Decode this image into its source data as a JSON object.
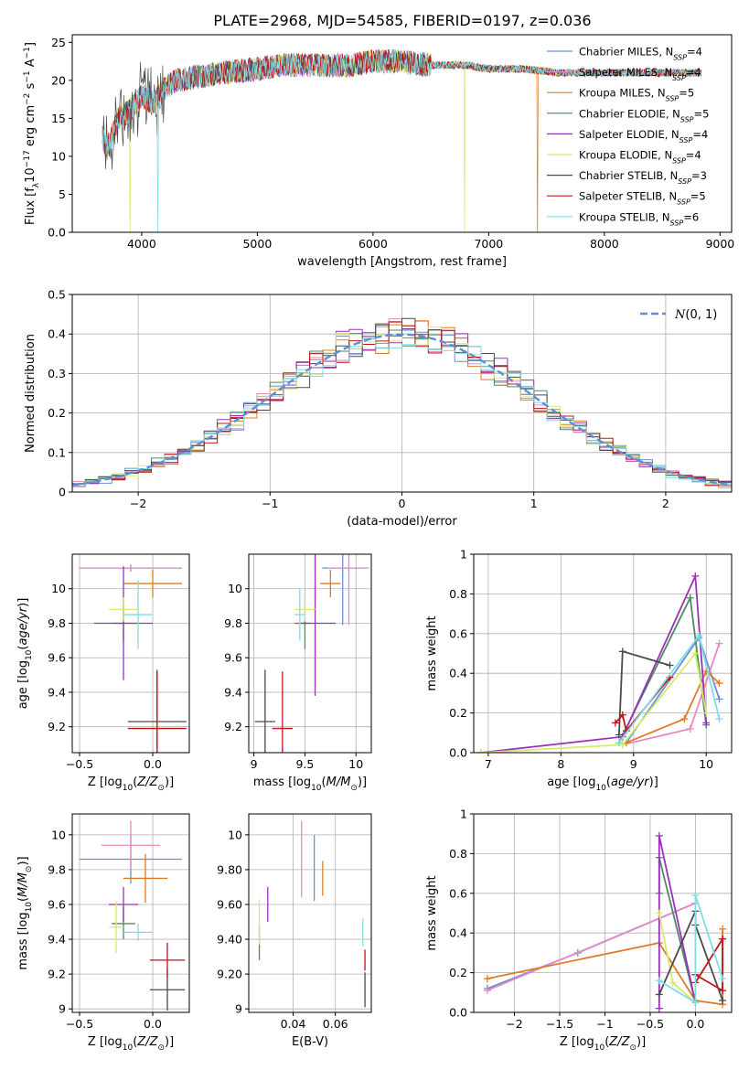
{
  "figure": {
    "title": "PLATE=2968, MJD=54585, FIBERID=0197, z=0.036"
  },
  "series_styles": [
    {
      "name": "Chabrier MILES",
      "nssp": "4",
      "color": "#6b8ed6"
    },
    {
      "name": "Salpeter MILES",
      "nssp": "4",
      "color": "#e78ac3"
    },
    {
      "name": "Kroupa MILES",
      "nssp": "5",
      "color": "#e07b24"
    },
    {
      "name": "Chabrier ELODIE",
      "nssp": "5",
      "color": "#4e8a5f"
    },
    {
      "name": "Salpeter ELODIE",
      "nssp": "4",
      "color": "#9b30b8"
    },
    {
      "name": "Kroupa ELODIE",
      "nssp": "4",
      "color": "#d9e96b"
    },
    {
      "name": "Chabrier STELIB",
      "nssp": "3",
      "color": "#4a4a4a"
    },
    {
      "name": "Salpeter STELIB",
      "nssp": "5",
      "color": "#c0141a"
    },
    {
      "name": "Kroupa STELIB",
      "nssp": "6",
      "color": "#7fdde3"
    }
  ],
  "chart_data": [
    {
      "id": "spectrum",
      "type": "line",
      "title": "PLATE=2968, MJD=54585, FIBERID=0197, z=0.036",
      "xlabel": "wavelength [Angstrom, rest frame]",
      "ylabel": "Flux [f_λ 10^-17 erg cm^-2 s^-1 A^-1]",
      "xlim": [
        3400,
        9100
      ],
      "ylim": [
        0,
        26
      ],
      "xticks": [
        4000,
        5000,
        6000,
        7000,
        8000,
        9000
      ],
      "yticks": [
        0,
        5,
        10,
        15,
        20,
        25
      ],
      "grid": false,
      "legend": "top-right",
      "envelope": {
        "x": [
          3650,
          3700,
          3800,
          3900,
          4000,
          4100,
          4200,
          4300,
          4500,
          4700,
          5000,
          5200,
          5500,
          5800,
          6000,
          6200,
          6500,
          6800,
          7000,
          7300,
          7600,
          8000,
          8400,
          8800
        ],
        "y": [
          13,
          11,
          15,
          16,
          18,
          17,
          19,
          20,
          20.5,
          21,
          21.5,
          22,
          22,
          22,
          22.5,
          22.5,
          22,
          22,
          21.5,
          21.5,
          21,
          21,
          21,
          21
        ]
      },
      "cutoffs": [
        {
          "series": "Kroupa ELODIE",
          "x": 3900
        },
        {
          "series": "Kroupa STELIB",
          "x": 4140
        },
        {
          "series": "Kroupa ELODIE",
          "x": 6790
        },
        {
          "series": "Kroupa MILES",
          "x": 7420
        }
      ]
    },
    {
      "id": "residuals",
      "type": "bar",
      "xlabel": "(data-model)/error",
      "ylabel": "Normed distribution",
      "xlim": [
        -2.5,
        2.5
      ],
      "ylim": [
        0,
        0.5
      ],
      "xticks": [
        -2,
        -1,
        0,
        1,
        2
      ],
      "yticks": [
        0,
        0.1,
        0.2,
        0.3,
        0.4,
        0.5
      ],
      "grid": true,
      "legend": "top-right",
      "reference": {
        "name": "N(0,1)",
        "mean": 0,
        "sigma": 1
      },
      "bin_width": 0.1,
      "series_note": "step histograms of the nine fits, all following N(0,1) with scatter"
    },
    {
      "id": "age-vs-Z",
      "type": "scatter",
      "xlabel": "Z [log10(Z/Zsun)]",
      "ylabel": "age [log10(age/yr)]",
      "xlim": [
        -0.55,
        0.25
      ],
      "ylim": [
        9.05,
        10.2
      ],
      "xticks": [
        -0.5,
        0.0
      ],
      "yticks": [
        9.2,
        9.4,
        9.6,
        9.8,
        10.0
      ],
      "grid": true,
      "points": [
        {
          "series": "Chabrier MILES",
          "x": -0.15,
          "y": 10.12,
          "xerr": 0.35,
          "yerr": 0.02
        },
        {
          "series": "Salpeter MILES",
          "x": -0.15,
          "y": 10.12,
          "xerr": 0.35,
          "yerr": 0.02
        },
        {
          "series": "Kroupa MILES",
          "x": 0.0,
          "y": 10.03,
          "xerr": 0.2,
          "yerr": 0.08
        },
        {
          "series": "Chabrier ELODIE",
          "x": -0.2,
          "y": 9.8,
          "xerr": 0.08,
          "yerr": 0.1
        },
        {
          "series": "Salpeter ELODIE",
          "x": -0.2,
          "y": 9.8,
          "xerr": 0.2,
          "yerr": 0.33
        },
        {
          "series": "Kroupa ELODIE",
          "x": -0.2,
          "y": 9.88,
          "xerr": 0.1,
          "yerr": 0.07
        },
        {
          "series": "Chabrier STELIB",
          "x": 0.03,
          "y": 9.23,
          "xerr": 0.2,
          "yerr": 0.3
        },
        {
          "series": "Salpeter STELIB",
          "x": 0.03,
          "y": 9.19,
          "xerr": 0.2,
          "yerr": 0.33
        },
        {
          "series": "Kroupa STELIB",
          "x": -0.1,
          "y": 9.85,
          "xerr": 0.1,
          "yerr": 0.2
        }
      ]
    },
    {
      "id": "age-vs-mass",
      "type": "scatter",
      "xlabel": "mass [log10(M/Msun)]",
      "ylabel": "",
      "xlim": [
        8.95,
        10.15
      ],
      "ylim": [
        9.05,
        10.2
      ],
      "xticks": [
        9.0,
        9.5,
        10.0
      ],
      "yticks": [
        9.2,
        9.4,
        9.6,
        9.8,
        10.0
      ],
      "grid": true,
      "points": [
        {
          "series": "Chabrier MILES",
          "x": 9.87,
          "y": 10.12,
          "xerr": 0.2,
          "yerr": 0.33
        },
        {
          "series": "Salpeter MILES",
          "x": 9.93,
          "y": 10.12,
          "xerr": 0.2,
          "yerr": 0.33
        },
        {
          "series": "Kroupa MILES",
          "x": 9.75,
          "y": 10.03,
          "xerr": 0.1,
          "yerr": 0.08
        },
        {
          "series": "Chabrier ELODIE",
          "x": 9.5,
          "y": 9.8,
          "xerr": 0.05,
          "yerr": 0.15
        },
        {
          "series": "Salpeter ELODIE",
          "x": 9.6,
          "y": 9.8,
          "xerr": 0.2,
          "yerr": 0.42
        },
        {
          "series": "Kroupa ELODIE",
          "x": 9.5,
          "y": 9.88,
          "xerr": 0.1,
          "yerr": 0.07
        },
        {
          "series": "Chabrier STELIB",
          "x": 9.11,
          "y": 9.23,
          "xerr": 0.1,
          "yerr": 0.3
        },
        {
          "series": "Salpeter STELIB",
          "x": 9.28,
          "y": 9.19,
          "xerr": 0.1,
          "yerr": 0.33
        },
        {
          "series": "Kroupa STELIB",
          "x": 9.45,
          "y": 9.85,
          "xerr": 0.05,
          "yerr": 0.15
        }
      ]
    },
    {
      "id": "mass-weight-vs-age",
      "type": "line",
      "xlabel": "age [log10(age/yr)]",
      "ylabel": "mass weight",
      "xlim": [
        6.8,
        10.35
      ],
      "ylim": [
        0,
        1
      ],
      "xticks": [
        7,
        8,
        9,
        10
      ],
      "yticks": [
        0.0,
        0.2,
        0.4,
        0.6,
        0.8,
        1.0
      ],
      "grid": true,
      "series": [
        {
          "name": "Chabrier MILES",
          "x": [
            8.9,
            9.9,
            10.18
          ],
          "y": [
            0.05,
            0.58,
            0.27
          ]
        },
        {
          "name": "Salpeter MILES",
          "x": [
            8.85,
            9.78,
            10.18
          ],
          "y": [
            0.04,
            0.12,
            0.55
          ]
        },
        {
          "name": "Kroupa MILES",
          "x": [
            8.9,
            9.7,
            10.0,
            10.18
          ],
          "y": [
            0.05,
            0.17,
            0.41,
            0.35
          ]
        },
        {
          "name": "Chabrier ELODIE",
          "x": [
            8.8,
            9.78,
            10.0
          ],
          "y": [
            0.05,
            0.78,
            0.14
          ]
        },
        {
          "name": "Salpeter ELODIE",
          "x": [
            6.9,
            8.85,
            9.85,
            10.0
          ],
          "y": [
            0.0,
            0.08,
            0.89,
            0.15
          ]
        },
        {
          "name": "Kroupa ELODIE",
          "x": [
            6.9,
            8.85,
            9.85,
            10.0
          ],
          "y": [
            0.0,
            0.04,
            0.5,
            0.2
          ]
        },
        {
          "name": "Chabrier STELIB",
          "x": [
            8.8,
            8.85,
            9.5
          ],
          "y": [
            0.09,
            0.51,
            0.44
          ]
        },
        {
          "name": "Salpeter STELIB",
          "x": [
            8.75,
            8.85,
            8.9,
            9.5
          ],
          "y": [
            0.15,
            0.19,
            0.11,
            0.38
          ]
        },
        {
          "name": "Kroupa STELIB",
          "x": [
            8.8,
            9.9,
            10.18
          ],
          "y": [
            0.05,
            0.59,
            0.17
          ]
        }
      ]
    },
    {
      "id": "mass-vs-Z",
      "type": "scatter",
      "xlabel": "Z [log10(Z/Zsun)]",
      "ylabel": "mass [log10(M/Msun)]",
      "xlim": [
        -0.55,
        0.25
      ],
      "ylim": [
        8.98,
        10.12
      ],
      "xticks": [
        -0.5,
        0.0
      ],
      "yticks": [
        9.0,
        9.2,
        9.4,
        9.6,
        9.8,
        10.0
      ],
      "grid": true,
      "points": [
        {
          "series": "Chabrier MILES",
          "x": -0.15,
          "y": 9.86,
          "xerr": 0.35,
          "yerr": 0.14
        },
        {
          "series": "Salpeter MILES",
          "x": -0.15,
          "y": 9.94,
          "xerr": 0.2,
          "yerr": 0.14
        },
        {
          "series": "Kroupa MILES",
          "x": -0.05,
          "y": 9.75,
          "xerr": 0.15,
          "yerr": 0.14
        },
        {
          "series": "Chabrier ELODIE",
          "x": -0.2,
          "y": 9.49,
          "xerr": 0.08,
          "yerr": 0.09
        },
        {
          "series": "Salpeter ELODIE",
          "x": -0.2,
          "y": 9.6,
          "xerr": 0.1,
          "yerr": 0.1
        },
        {
          "series": "Kroupa ELODIE",
          "x": -0.25,
          "y": 9.47,
          "xerr": 0.05,
          "yerr": 0.15
        },
        {
          "series": "Chabrier STELIB",
          "x": 0.1,
          "y": 9.11,
          "xerr": 0.12,
          "yerr": 0.12
        },
        {
          "series": "Salpeter STELIB",
          "x": 0.1,
          "y": 9.28,
          "xerr": 0.12,
          "yerr": 0.1
        },
        {
          "series": "Kroupa STELIB",
          "x": -0.1,
          "y": 9.44,
          "xerr": 0.1,
          "yerr": 0.05
        }
      ]
    },
    {
      "id": "mass-vs-EBV",
      "type": "scatter",
      "xlabel": "E(B-V)",
      "ylabel": "",
      "xlim": [
        0.019,
        0.077
      ],
      "ylim": [
        8.98,
        10.12
      ],
      "xticks": [
        0.04,
        0.06
      ],
      "yticks": [
        9.0,
        9.2,
        9.4,
        9.6,
        9.8,
        10.0
      ],
      "grid": true,
      "points": [
        {
          "series": "Chabrier MILES",
          "x": 0.05,
          "y": 9.81,
          "yerr": 0.19
        },
        {
          "series": "Salpeter MILES",
          "x": 0.044,
          "y": 9.86,
          "yerr": 0.22
        },
        {
          "series": "Kroupa MILES",
          "x": 0.054,
          "y": 9.75,
          "yerr": 0.1
        },
        {
          "series": "Chabrier ELODIE",
          "x": 0.024,
          "y": 9.38,
          "yerr": 0.1
        },
        {
          "series": "Salpeter ELODIE",
          "x": 0.028,
          "y": 9.6,
          "yerr": 0.1
        },
        {
          "series": "Kroupa ELODIE",
          "x": 0.024,
          "y": 9.5,
          "yerr": 0.13
        },
        {
          "series": "Chabrier STELIB",
          "x": 0.074,
          "y": 9.11,
          "yerr": 0.1
        },
        {
          "series": "Salpeter STELIB",
          "x": 0.074,
          "y": 9.28,
          "yerr": 0.06
        },
        {
          "series": "Kroupa STELIB",
          "x": 0.073,
          "y": 9.44,
          "yerr": 0.08
        }
      ]
    },
    {
      "id": "mass-weight-vs-Z",
      "type": "line",
      "xlabel": "Z [log10(Z/Zsun)]",
      "ylabel": "mass weight",
      "xlim": [
        -2.45,
        0.4
      ],
      "ylim": [
        0,
        1
      ],
      "xticks": [
        -2.0,
        -1.5,
        -1.0,
        -0.5,
        0.0
      ],
      "yticks": [
        0.0,
        0.2,
        0.4,
        0.6,
        0.8,
        1.0
      ],
      "grid": true,
      "series": [
        {
          "name": "Chabrier MILES",
          "x": [
            -2.3,
            -1.3,
            0.0
          ],
          "y": [
            0.12,
            0.3,
            0.55
          ]
        },
        {
          "name": "Salpeter MILES",
          "x": [
            -2.3,
            0.0
          ],
          "y": [
            0.11,
            0.55
          ]
        },
        {
          "name": "Kroupa MILES",
          "x": [
            -2.3,
            -0.4,
            0.0,
            0.3,
            0.3
          ],
          "y": [
            0.17,
            0.35,
            0.06,
            0.04,
            0.42
          ]
        },
        {
          "name": "Chabrier ELODIE",
          "x": [
            -0.4,
            -0.4,
            0.0
          ],
          "y": [
            0.6,
            0.78,
            0.05
          ]
        },
        {
          "name": "Salpeter ELODIE",
          "x": [
            -0.4,
            -0.4,
            0.0
          ],
          "y": [
            0.02,
            0.89,
            0.05
          ]
        },
        {
          "name": "Kroupa ELODIE",
          "x": [
            -0.4,
            -0.25,
            0.0
          ],
          "y": [
            0.5,
            0.15,
            0.05
          ]
        },
        {
          "name": "Chabrier STELIB",
          "x": [
            -0.4,
            0.0,
            0.0,
            0.3
          ],
          "y": [
            0.09,
            0.51,
            0.44,
            0.06
          ]
        },
        {
          "name": "Salpeter STELIB",
          "x": [
            0.0,
            0.3,
            0.3,
            0.0
          ],
          "y": [
            0.19,
            0.11,
            0.37,
            0.15
          ]
        },
        {
          "name": "Kroupa STELIB",
          "x": [
            -0.4,
            0.0,
            0.0,
            0.3
          ],
          "y": [
            0.16,
            0.05,
            0.59,
            0.17
          ]
        }
      ]
    }
  ]
}
